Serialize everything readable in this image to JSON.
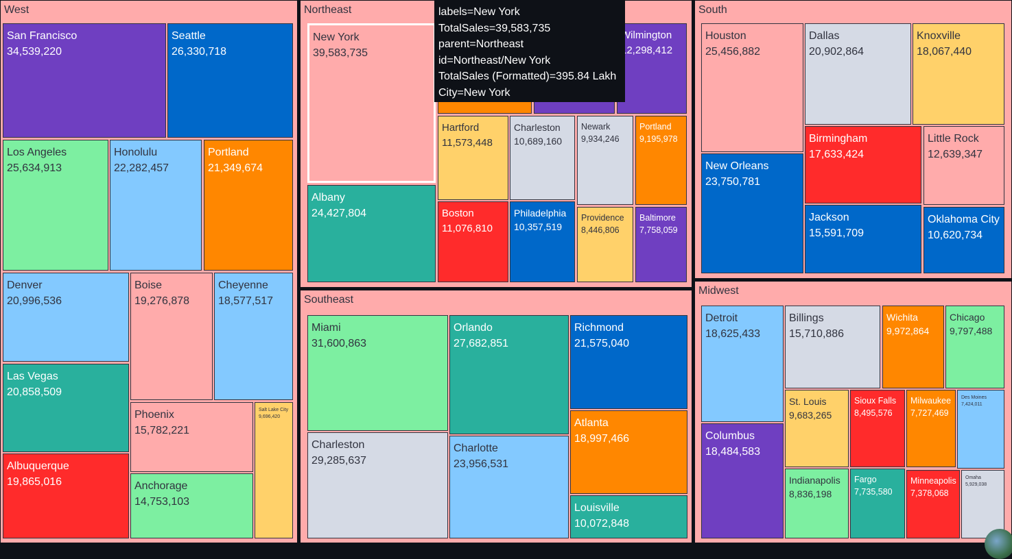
{
  "colors": {
    "purple": "#6f3fc1",
    "blue": "#0068c9",
    "lightgreen": "#7defa1",
    "lightblue": "#83c9ff",
    "orange": "#ff8700",
    "teal": "#29b09d",
    "red": "#ff2b2b",
    "pink": "#ffabab",
    "gray": "#d5dae5",
    "yellow": "#ffd16a",
    "text_dark": "#31333f",
    "text_light": "#ffffff",
    "background": "#0e1117"
  },
  "tooltip": {
    "lines": [
      "labels=New York",
      "TotalSales=39,583,735",
      "parent=Northeast",
      "id=Northeast/New York",
      "TotalSales (Formatted)=395.84 Lakh",
      "City=New York"
    ]
  },
  "chart_data": {
    "type": "treemap",
    "title": "",
    "value_field": "TotalSales",
    "regions": [
      {
        "name": "West",
        "children": [
          {
            "city": "San Francisco",
            "value": 34539220,
            "label": "34,539,220",
            "color": "purple"
          },
          {
            "city": "Seattle",
            "value": 26330718,
            "label": "26,330,718",
            "color": "blue"
          },
          {
            "city": "Los Angeles",
            "value": 25634913,
            "label": "25,634,913",
            "color": "lightgreen"
          },
          {
            "city": "Honolulu",
            "value": 22282457,
            "label": "22,282,457",
            "color": "lightblue"
          },
          {
            "city": "Portland",
            "value": 21349674,
            "label": "21,349,674",
            "color": "orange"
          },
          {
            "city": "Denver",
            "value": 20996536,
            "label": "20,996,536",
            "color": "lightblue"
          },
          {
            "city": "Boise",
            "value": 19276878,
            "label": "19,276,878",
            "color": "pink"
          },
          {
            "city": "Cheyenne",
            "value": 18577517,
            "label": "18,577,517",
            "color": "lightblue"
          },
          {
            "city": "Las Vegas",
            "value": 20858509,
            "label": "20,858,509",
            "color": "teal"
          },
          {
            "city": "Phoenix",
            "value": 15782221,
            "label": "15,782,221",
            "color": "pink"
          },
          {
            "city": "Salt Lake City",
            "value": 9696420,
            "label": "9,696,420",
            "color": "yellow"
          },
          {
            "city": "Albuquerque",
            "value": 19865016,
            "label": "19,865,016",
            "color": "red"
          },
          {
            "city": "Anchorage",
            "value": 14753103,
            "label": "14,753,103",
            "color": "lightgreen"
          }
        ]
      },
      {
        "name": "Northeast",
        "children": [
          {
            "city": "New York",
            "value": 39583735,
            "label": "39,583,735",
            "color": "pink",
            "highlighted": true
          },
          {
            "city": "Albany",
            "value": 24427804,
            "label": "24,427,804",
            "color": "teal"
          },
          {
            "city": "Wilmington",
            "value": 12298412,
            "label": "12,298,412",
            "color": "purple"
          },
          {
            "city": "",
            "value": null,
            "label": "",
            "color": "orange"
          },
          {
            "city": "",
            "value": null,
            "label": "",
            "color": "purple"
          },
          {
            "city": "Hartford",
            "value": 11573448,
            "label": "11,573,448",
            "color": "yellow"
          },
          {
            "city": "Charleston",
            "value": 10689160,
            "label": "10,689,160",
            "color": "gray"
          },
          {
            "city": "Newark",
            "value": 9934246,
            "label": "9,934,246",
            "color": "gray"
          },
          {
            "city": "Portland",
            "value": 9195978,
            "label": "9,195,978",
            "color": "orange"
          },
          {
            "city": "Boston",
            "value": 11076810,
            "label": "11,076,810",
            "color": "red"
          },
          {
            "city": "Philadelphia",
            "value": 10357519,
            "label": "10,357,519",
            "color": "blue"
          },
          {
            "city": "Providence",
            "value": 8446806,
            "label": "8,446,806",
            "color": "yellow"
          },
          {
            "city": "Baltimore",
            "value": 7758059,
            "label": "7,758,059",
            "color": "purple"
          }
        ]
      },
      {
        "name": "South",
        "children": [
          {
            "city": "Houston",
            "value": 25456882,
            "label": "25,456,882",
            "color": "pink"
          },
          {
            "city": "Dallas",
            "value": 20902864,
            "label": "20,902,864",
            "color": "gray"
          },
          {
            "city": "Knoxville",
            "value": 18067440,
            "label": "18,067,440",
            "color": "yellow"
          },
          {
            "city": "Birmingham",
            "value": 17633424,
            "label": "17,633,424",
            "color": "red"
          },
          {
            "city": "Little Rock",
            "value": 12639347,
            "label": "12,639,347",
            "color": "pink"
          },
          {
            "city": "New Orleans",
            "value": 23750781,
            "label": "23,750,781",
            "color": "blue"
          },
          {
            "city": "Jackson",
            "value": 15591709,
            "label": "15,591,709",
            "color": "blue"
          },
          {
            "city": "Oklahoma City",
            "value": 10620734,
            "label": "10,620,734",
            "color": "blue"
          }
        ]
      },
      {
        "name": "Southeast",
        "children": [
          {
            "city": "Miami",
            "value": 31600863,
            "label": "31,600,863",
            "color": "lightgreen"
          },
          {
            "city": "Orlando",
            "value": 27682851,
            "label": "27,682,851",
            "color": "teal"
          },
          {
            "city": "Richmond",
            "value": 21575040,
            "label": "21,575,040",
            "color": "blue"
          },
          {
            "city": "Atlanta",
            "value": 18997466,
            "label": "18,997,466",
            "color": "orange"
          },
          {
            "city": "Charleston",
            "value": 29285637,
            "label": "29,285,637",
            "color": "gray"
          },
          {
            "city": "Charlotte",
            "value": 23956531,
            "label": "23,956,531",
            "color": "lightblue"
          },
          {
            "city": "Louisville",
            "value": 10072848,
            "label": "10,072,848",
            "color": "teal"
          }
        ]
      },
      {
        "name": "Midwest",
        "children": [
          {
            "city": "Detroit",
            "value": 18625433,
            "label": "18,625,433",
            "color": "lightblue"
          },
          {
            "city": "Billings",
            "value": 15710886,
            "label": "15,710,886",
            "color": "gray"
          },
          {
            "city": "Wichita",
            "value": 9972864,
            "label": "9,972,864",
            "color": "orange"
          },
          {
            "city": "Chicago",
            "value": 9797488,
            "label": "9,797,488",
            "color": "lightgreen"
          },
          {
            "city": "St. Louis",
            "value": 9683265,
            "label": "9,683,265",
            "color": "yellow"
          },
          {
            "city": "Sioux Falls",
            "value": 8495576,
            "label": "8,495,576",
            "color": "red"
          },
          {
            "city": "Milwaukee",
            "value": 7727469,
            "label": "7,727,469",
            "color": "orange"
          },
          {
            "city": "Des Moines",
            "value": 7424011,
            "label": "7,424,011",
            "color": "lightblue"
          },
          {
            "city": "Columbus",
            "value": 18484583,
            "label": "18,484,583",
            "color": "purple"
          },
          {
            "city": "Indianapolis",
            "value": 8836198,
            "label": "8,836,198",
            "color": "lightgreen"
          },
          {
            "city": "Fargo",
            "value": 7735580,
            "label": "7,735,580",
            "color": "teal"
          },
          {
            "city": "Minneapolis",
            "value": 7378068,
            "label": "7,378,068",
            "color": "red"
          },
          {
            "city": "Omaha",
            "value": 5929038,
            "label": "5,929,038",
            "color": "gray"
          }
        ]
      }
    ]
  }
}
